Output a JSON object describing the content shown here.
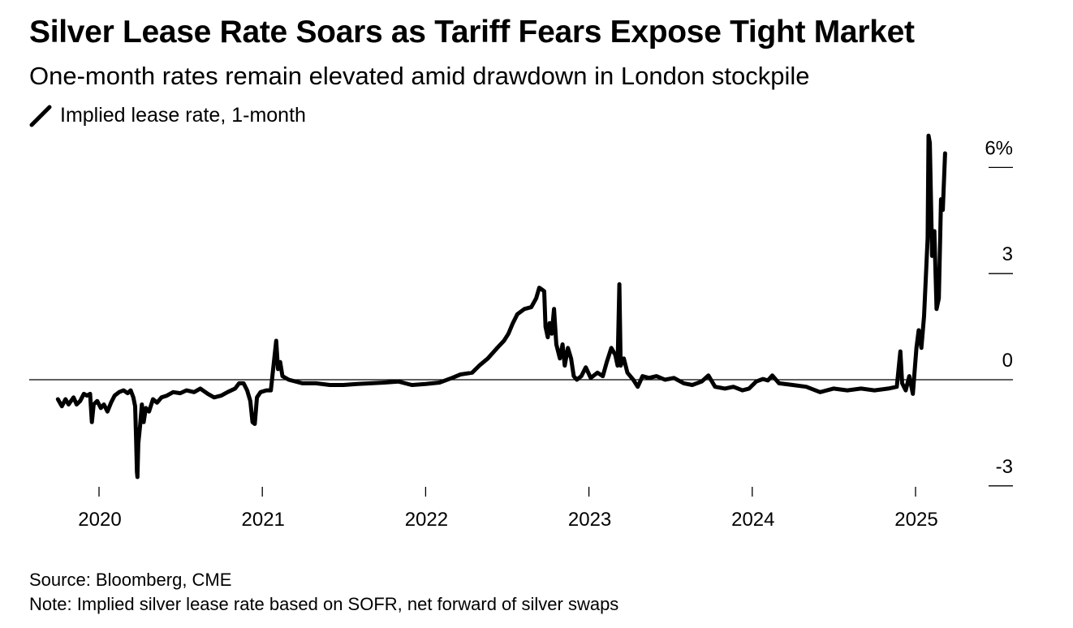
{
  "title": "Silver Lease Rate Soars as Tariff Fears Expose Tight Market",
  "subtitle": "One-month rates remain elevated amid drawdown in London stockpile",
  "footer": {
    "source": "Source: Bloomberg, CME",
    "note": "Note: Implied silver lease rate based on SOFR, net forward of silver swaps"
  },
  "colors": {
    "line": "#000000",
    "zero_line": "#000000",
    "background": "#ffffff"
  },
  "chart_data": {
    "type": "line",
    "title": "Silver Lease Rate Soars as Tariff Fears Expose Tight Market",
    "subtitle": "One-month rates remain elevated amid drawdown in London stockpile",
    "legend": {
      "position": "top-left",
      "entries": [
        "Implied lease rate, 1-month"
      ]
    },
    "xlabel": "",
    "ylabel": "",
    "x_ticks": [
      "2020",
      "2021",
      "2022",
      "2023",
      "2024",
      "2025"
    ],
    "y_ticks": [
      "-3",
      "0",
      "3",
      "6%"
    ],
    "y_tick_values": [
      -3,
      0,
      3,
      6
    ],
    "ylim": [
      -3.1,
      6.6
    ],
    "xlim": [
      "2019-09-01",
      "2025-04-10"
    ],
    "grid": false,
    "y_axis_side": "right",
    "series": [
      {
        "name": "Implied lease rate, 1-month",
        "points": [
          [
            "2019-10-01",
            -0.55
          ],
          [
            "2019-10-10",
            -0.75
          ],
          [
            "2019-10-18",
            -0.55
          ],
          [
            "2019-10-25",
            -0.7
          ],
          [
            "2019-11-05",
            -0.5
          ],
          [
            "2019-11-12",
            -0.7
          ],
          [
            "2019-11-20",
            -0.6
          ],
          [
            "2019-11-28",
            -0.4
          ],
          [
            "2019-12-05",
            -0.45
          ],
          [
            "2019-12-12",
            -0.4
          ],
          [
            "2019-12-16",
            -1.2
          ],
          [
            "2019-12-20",
            -0.7
          ],
          [
            "2019-12-28",
            -0.6
          ],
          [
            "2020-01-05",
            -0.8
          ],
          [
            "2020-01-12",
            -0.7
          ],
          [
            "2020-01-20",
            -0.9
          ],
          [
            "2020-01-28",
            -0.65
          ],
          [
            "2020-02-05",
            -0.45
          ],
          [
            "2020-02-15",
            -0.35
          ],
          [
            "2020-02-25",
            -0.3
          ],
          [
            "2020-03-05",
            -0.38
          ],
          [
            "2020-03-12",
            -0.3
          ],
          [
            "2020-03-18",
            -0.5
          ],
          [
            "2020-03-22",
            -0.75
          ],
          [
            "2020-03-24",
            -1.6
          ],
          [
            "2020-03-26",
            -2.6
          ],
          [
            "2020-03-27",
            -2.75
          ],
          [
            "2020-03-29",
            -1.8
          ],
          [
            "2020-04-02",
            -1.3
          ],
          [
            "2020-04-06",
            -0.7
          ],
          [
            "2020-04-10",
            -1.2
          ],
          [
            "2020-04-15",
            -0.8
          ],
          [
            "2020-04-22",
            -0.9
          ],
          [
            "2020-05-01",
            -0.55
          ],
          [
            "2020-05-10",
            -0.65
          ],
          [
            "2020-05-20",
            -0.5
          ],
          [
            "2020-06-01",
            -0.45
          ],
          [
            "2020-06-15",
            -0.35
          ],
          [
            "2020-07-01",
            -0.38
          ],
          [
            "2020-07-15",
            -0.3
          ],
          [
            "2020-08-01",
            -0.35
          ],
          [
            "2020-08-15",
            -0.25
          ],
          [
            "2020-09-01",
            -0.4
          ],
          [
            "2020-09-15",
            -0.5
          ],
          [
            "2020-10-01",
            -0.45
          ],
          [
            "2020-10-15",
            -0.35
          ],
          [
            "2020-11-01",
            -0.25
          ],
          [
            "2020-11-10",
            -0.1
          ],
          [
            "2020-11-20",
            -0.1
          ],
          [
            "2020-11-28",
            -0.3
          ],
          [
            "2020-12-05",
            -0.6
          ],
          [
            "2020-12-10",
            -1.2
          ],
          [
            "2020-12-15",
            -1.25
          ],
          [
            "2020-12-20",
            -0.5
          ],
          [
            "2020-12-28",
            -0.35
          ],
          [
            "2021-01-10",
            -0.3
          ],
          [
            "2021-01-20",
            -0.3
          ],
          [
            "2021-01-26",
            0.4
          ],
          [
            "2021-02-01",
            1.1
          ],
          [
            "2021-02-05",
            0.3
          ],
          [
            "2021-02-10",
            0.5
          ],
          [
            "2021-02-15",
            0.1
          ],
          [
            "2021-03-01",
            0.0
          ],
          [
            "2021-04-01",
            -0.1
          ],
          [
            "2021-05-01",
            -0.1
          ],
          [
            "2021-06-01",
            -0.15
          ],
          [
            "2021-07-01",
            -0.15
          ],
          [
            "2021-08-01",
            -0.12
          ],
          [
            "2021-09-01",
            -0.1
          ],
          [
            "2021-10-01",
            -0.08
          ],
          [
            "2021-11-01",
            -0.05
          ],
          [
            "2021-12-01",
            -0.15
          ],
          [
            "2022-01-01",
            -0.12
          ],
          [
            "2022-02-01",
            -0.08
          ],
          [
            "2022-03-01",
            0.05
          ],
          [
            "2022-03-20",
            0.15
          ],
          [
            "2022-04-15",
            0.2
          ],
          [
            "2022-05-01",
            0.4
          ],
          [
            "2022-05-20",
            0.6
          ],
          [
            "2022-06-10",
            0.9
          ],
          [
            "2022-06-25",
            1.1
          ],
          [
            "2022-07-05",
            1.3
          ],
          [
            "2022-07-15",
            1.6
          ],
          [
            "2022-07-25",
            1.85
          ],
          [
            "2022-08-10",
            2.0
          ],
          [
            "2022-08-25",
            2.05
          ],
          [
            "2022-09-05",
            2.3
          ],
          [
            "2022-09-12",
            2.6
          ],
          [
            "2022-09-18",
            2.55
          ],
          [
            "2022-09-23",
            2.5
          ],
          [
            "2022-09-26",
            1.5
          ],
          [
            "2022-10-01",
            1.2
          ],
          [
            "2022-10-05",
            1.6
          ],
          [
            "2022-10-10",
            1.3
          ],
          [
            "2022-10-15",
            2.0
          ],
          [
            "2022-10-20",
            1.0
          ],
          [
            "2022-10-28",
            0.6
          ],
          [
            "2022-11-03",
            1.0
          ],
          [
            "2022-11-08",
            0.4
          ],
          [
            "2022-11-15",
            0.9
          ],
          [
            "2022-11-22",
            0.6
          ],
          [
            "2022-11-28",
            0.1
          ],
          [
            "2022-12-05",
            0.0
          ],
          [
            "2022-12-15",
            0.1
          ],
          [
            "2022-12-25",
            0.35
          ],
          [
            "2023-01-05",
            0.05
          ],
          [
            "2023-01-20",
            0.2
          ],
          [
            "2023-02-01",
            0.1
          ],
          [
            "2023-02-10",
            0.5
          ],
          [
            "2023-02-20",
            0.9
          ],
          [
            "2023-03-01",
            0.7
          ],
          [
            "2023-03-06",
            0.4
          ],
          [
            "2023-03-10",
            2.7
          ],
          [
            "2023-03-13",
            0.4
          ],
          [
            "2023-03-20",
            0.6
          ],
          [
            "2023-03-28",
            0.2
          ],
          [
            "2023-04-10",
            0.0
          ],
          [
            "2023-04-20",
            -0.2
          ],
          [
            "2023-05-01",
            0.1
          ],
          [
            "2023-05-15",
            0.05
          ],
          [
            "2023-06-01",
            0.1
          ],
          [
            "2023-06-20",
            0.0
          ],
          [
            "2023-07-10",
            0.05
          ],
          [
            "2023-08-01",
            -0.1
          ],
          [
            "2023-08-20",
            -0.15
          ],
          [
            "2023-09-10",
            -0.05
          ],
          [
            "2023-09-25",
            0.12
          ],
          [
            "2023-10-10",
            -0.2
          ],
          [
            "2023-11-01",
            -0.25
          ],
          [
            "2023-11-20",
            -0.2
          ],
          [
            "2023-12-10",
            -0.3
          ],
          [
            "2023-12-25",
            -0.25
          ],
          [
            "2024-01-10",
            -0.05
          ],
          [
            "2024-01-25",
            0.02
          ],
          [
            "2024-02-05",
            -0.02
          ],
          [
            "2024-02-15",
            0.12
          ],
          [
            "2024-03-01",
            -0.1
          ],
          [
            "2024-04-01",
            -0.15
          ],
          [
            "2024-05-01",
            -0.2
          ],
          [
            "2024-06-01",
            -0.35
          ],
          [
            "2024-07-01",
            -0.25
          ],
          [
            "2024-08-01",
            -0.3
          ],
          [
            "2024-09-01",
            -0.25
          ],
          [
            "2024-10-01",
            -0.3
          ],
          [
            "2024-11-01",
            -0.25
          ],
          [
            "2024-11-20",
            -0.2
          ],
          [
            "2024-11-28",
            0.8
          ],
          [
            "2024-12-02",
            -0.1
          ],
          [
            "2024-12-10",
            -0.3
          ],
          [
            "2024-12-18",
            0.1
          ],
          [
            "2024-12-26",
            -0.4
          ],
          [
            "2025-01-03",
            0.9
          ],
          [
            "2025-01-08",
            1.4
          ],
          [
            "2025-01-14",
            0.9
          ],
          [
            "2025-01-20",
            1.8
          ],
          [
            "2025-01-28",
            4.0
          ],
          [
            "2025-01-30",
            6.9
          ],
          [
            "2025-02-02",
            6.7
          ],
          [
            "2025-02-07",
            3.5
          ],
          [
            "2025-02-12",
            4.2
          ],
          [
            "2025-02-17",
            2.0
          ],
          [
            "2025-02-22",
            2.3
          ],
          [
            "2025-02-27",
            5.1
          ],
          [
            "2025-03-03",
            4.8
          ],
          [
            "2025-03-08",
            6.4
          ]
        ]
      }
    ]
  }
}
